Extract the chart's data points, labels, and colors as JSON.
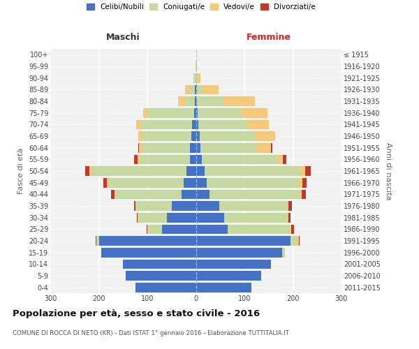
{
  "age_groups": [
    "0-4",
    "5-9",
    "10-14",
    "15-19",
    "20-24",
    "25-29",
    "30-34",
    "35-39",
    "40-44",
    "45-49",
    "50-54",
    "55-59",
    "60-64",
    "65-69",
    "70-74",
    "75-79",
    "80-84",
    "85-89",
    "90-94",
    "95-99",
    "100+"
  ],
  "birth_years": [
    "2011-2015",
    "2006-2010",
    "2001-2005",
    "1996-2000",
    "1991-1995",
    "1986-1990",
    "1981-1985",
    "1976-1980",
    "1971-1975",
    "1966-1970",
    "1961-1965",
    "1956-1960",
    "1951-1955",
    "1946-1950",
    "1941-1945",
    "1936-1940",
    "1931-1935",
    "1926-1930",
    "1921-1925",
    "1916-1920",
    "≤ 1915"
  ],
  "males": {
    "celibe": [
      125,
      145,
      150,
      195,
      200,
      70,
      60,
      50,
      30,
      25,
      20,
      12,
      12,
      10,
      8,
      4,
      2,
      2,
      0,
      0,
      0
    ],
    "coniugato": [
      0,
      0,
      0,
      0,
      5,
      30,
      60,
      75,
      135,
      155,
      195,
      105,
      100,
      100,
      105,
      95,
      20,
      10,
      3,
      1,
      0
    ],
    "vedovo": [
      0,
      0,
      0,
      0,
      0,
      0,
      0,
      0,
      2,
      3,
      5,
      3,
      5,
      8,
      10,
      10,
      15,
      10,
      2,
      0,
      0
    ],
    "divorziato": [
      0,
      0,
      0,
      0,
      2,
      2,
      2,
      3,
      8,
      8,
      8,
      8,
      2,
      0,
      0,
      0,
      0,
      0,
      0,
      0,
      0
    ]
  },
  "females": {
    "nubile": [
      115,
      135,
      155,
      178,
      195,
      65,
      58,
      48,
      28,
      22,
      18,
      12,
      10,
      8,
      5,
      3,
      2,
      2,
      0,
      0,
      0
    ],
    "coniugata": [
      0,
      0,
      0,
      5,
      15,
      130,
      130,
      140,
      185,
      190,
      195,
      155,
      115,
      115,
      100,
      90,
      55,
      15,
      5,
      1,
      0
    ],
    "vedova": [
      0,
      0,
      0,
      0,
      2,
      2,
      2,
      2,
      5,
      8,
      12,
      12,
      30,
      40,
      45,
      55,
      65,
      30,
      5,
      1,
      0
    ],
    "divorziata": [
      0,
      0,
      0,
      0,
      2,
      5,
      5,
      8,
      8,
      8,
      12,
      8,
      2,
      0,
      0,
      0,
      0,
      0,
      0,
      0,
      0
    ]
  },
  "colors": {
    "celibe_nubile": "#4472c4",
    "coniugato_coniugata": "#c5d9a0",
    "vedovo_vedova": "#f5c97a",
    "divorziato_divorziata": "#c0392b"
  },
  "xlim": 300,
  "title": "Popolazione per età, sesso e stato civile - 2016",
  "subtitle": "COMUNE DI ROCCA DI NETO (KR) - Dati ISTAT 1° gennaio 2016 - Elaborazione TUTTITALIA.IT",
  "ylabel_left": "Fasce di età",
  "ylabel_right": "Anni di nascita",
  "xlabel_left": "Maschi",
  "xlabel_right": "Femmine",
  "bg_color": "#f2f2f2",
  "legend_labels": [
    "Celibi/Nubili",
    "Coniugati/e",
    "Vedovi/e",
    "Divorziati/e"
  ],
  "xticks": [
    -300,
    -200,
    -100,
    0,
    100,
    200,
    300
  ],
  "xtick_labels": [
    "300",
    "200",
    "100",
    "0",
    "100",
    "200",
    "300"
  ]
}
